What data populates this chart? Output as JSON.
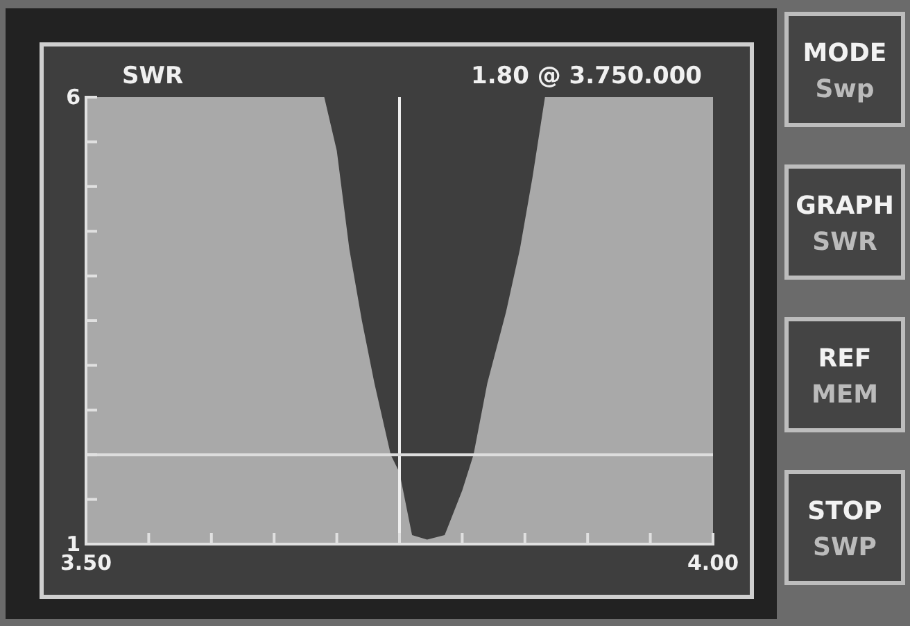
{
  "chart_data": {
    "type": "area",
    "title": "SWR",
    "x": [
      3.5,
      3.69,
      3.7,
      3.71,
      3.72,
      3.73,
      3.743,
      3.75,
      3.76,
      3.772,
      3.786,
      3.8,
      3.809,
      3.82,
      3.835,
      3.846,
      3.856,
      3.866,
      4.0
    ],
    "values": [
      6,
      6,
      5.4,
      4.3,
      3.5,
      2.8,
      2.0,
      1.8,
      1.1,
      1.05,
      1.1,
      1.6,
      2.0,
      2.8,
      3.6,
      4.3,
      5.1,
      6,
      6
    ],
    "color": "#a9a9a9",
    "xlim": [
      3.5,
      4.0
    ],
    "xticks": [
      {
        "value": 3.5,
        "label": "3.50"
      },
      {
        "value": 3.55,
        "label": null
      },
      {
        "value": 3.6,
        "label": null
      },
      {
        "value": 3.65,
        "label": null
      },
      {
        "value": 3.7,
        "label": null
      },
      {
        "value": 3.75,
        "label": null
      },
      {
        "value": 3.8,
        "label": null
      },
      {
        "value": 3.85,
        "label": null
      },
      {
        "value": 3.9,
        "label": null
      },
      {
        "value": 3.95,
        "label": null
      },
      {
        "value": 4.0,
        "label": "4.00"
      }
    ],
    "ylim": [
      1,
      6
    ],
    "yticks": [
      1,
      {
        "value": 1.5,
        "label": null
      },
      {
        "value": 2,
        "label": null
      },
      {
        "value": 2.5,
        "label": null
      },
      {
        "value": 3,
        "label": null
      },
      {
        "value": 3.5,
        "label": null
      },
      {
        "value": 4,
        "label": null
      },
      {
        "value": 4.5,
        "label": null
      },
      {
        "value": 5,
        "label": null
      },
      {
        "value": 5.5,
        "label": null
      },
      6
    ],
    "ref_lines": [
      {
        "axis": "x",
        "value": 3.75,
        "label": "1.80 @ 3.750.000",
        "color": "#eeeeee"
      },
      {
        "axis": "y",
        "value": 2,
        "color": "#dddddd"
      }
    ],
    "annotations": [
      "MODE\nSwp",
      "GRAPH\nSWR",
      "REF\nMEM",
      "STOP\nSWP"
    ],
    "grid": false
  }
}
